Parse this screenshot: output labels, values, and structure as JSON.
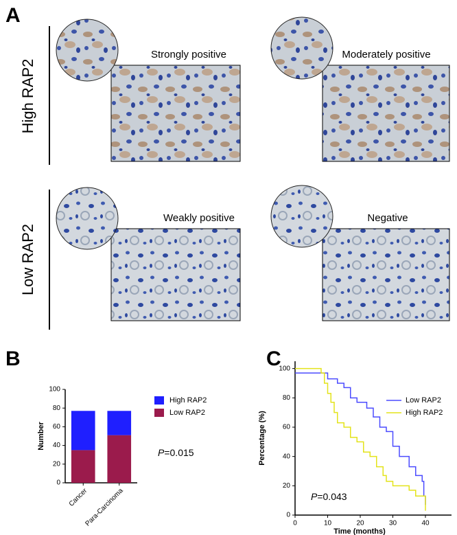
{
  "panel_a": {
    "label": "A",
    "rows": [
      {
        "label": "High RAP2",
        "images": [
          "Strongly positive",
          "Moderately positive"
        ]
      },
      {
        "label": "Low RAP2",
        "images": [
          "Weakly positive",
          "Negative"
        ]
      }
    ]
  },
  "chart_data": [
    {
      "type": "bar",
      "stacked": true,
      "panel_label": "B",
      "ylabel": "Number",
      "categories": [
        "Cancer",
        "Para-Carcinoma"
      ],
      "series": [
        {
          "name": "High RAP2",
          "color": "#1f1fff",
          "values": [
            42,
            26
          ]
        },
        {
          "name": "Low RAP2",
          "color": "#9b1b4c",
          "values": [
            35,
            51
          ]
        }
      ],
      "ylim": [
        0,
        100
      ],
      "yticks": [
        0,
        20,
        40,
        60,
        80,
        100
      ],
      "annotation_italic": "P",
      "annotation": "=0.015"
    },
    {
      "type": "line",
      "panel_label": "C",
      "xlabel": "Time (months)",
      "ylabel": "Percentage (%)",
      "series": [
        {
          "name": "Low RAP2",
          "color": "#4b4bff",
          "x": [
            0,
            10,
            10,
            13,
            13,
            15,
            15,
            17,
            17,
            19,
            19,
            22,
            22,
            24,
            24,
            26,
            26,
            28,
            28,
            30,
            30,
            32,
            32,
            35,
            35,
            37,
            37,
            39,
            39,
            39.5,
            39.5,
            40,
            40
          ],
          "values": [
            97,
            97,
            93,
            93,
            90,
            90,
            87,
            87,
            80,
            80,
            77,
            77,
            73,
            73,
            67,
            67,
            60,
            60,
            57,
            57,
            47,
            47,
            40,
            40,
            33,
            33,
            27,
            27,
            23,
            23,
            13,
            13,
            7
          ]
        },
        {
          "name": "High RAP2",
          "color": "#e3e31a",
          "x": [
            0,
            8,
            8,
            9,
            9,
            10,
            10,
            11,
            11,
            12,
            12,
            13,
            13,
            15,
            15,
            17,
            17,
            19,
            19,
            21,
            21,
            23,
            23,
            25,
            25,
            27,
            27,
            28,
            28,
            30,
            30,
            35,
            35,
            37,
            37,
            40,
            40
          ],
          "values": [
            100,
            100,
            97,
            97,
            90,
            90,
            83,
            83,
            77,
            77,
            70,
            70,
            63,
            63,
            60,
            60,
            53,
            53,
            50,
            50,
            43,
            43,
            40,
            40,
            33,
            33,
            27,
            27,
            23,
            23,
            20,
            20,
            17,
            17,
            13,
            13,
            3
          ]
        }
      ],
      "xlim": [
        0,
        48
      ],
      "xticks": [
        0,
        10,
        20,
        30,
        40
      ],
      "ylim": [
        0,
        105
      ],
      "yticks": [
        0,
        20,
        40,
        60,
        80,
        100
      ],
      "annotation_italic": "P",
      "annotation": "=0.043"
    }
  ]
}
